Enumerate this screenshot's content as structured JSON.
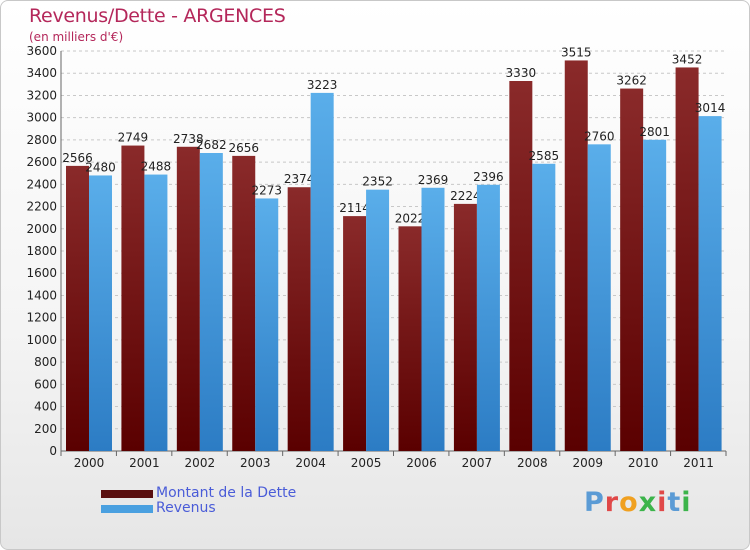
{
  "header": {
    "title": "Revenus/Dette - ARGENCES",
    "subtitle": "(en milliers d'€)"
  },
  "chart_data": {
    "type": "bar",
    "categories": [
      "2000",
      "2001",
      "2002",
      "2003",
      "2004",
      "2005",
      "2006",
      "2007",
      "2008",
      "2009",
      "2010",
      "2011"
    ],
    "series": [
      {
        "name": "Montant de la Dette",
        "values": [
          2566,
          2749,
          2738,
          2656,
          2374,
          2114,
          2022,
          2224,
          3330,
          3515,
          3262,
          3452
        ],
        "color": "#7a1a1a"
      },
      {
        "name": "Revenus",
        "values": [
          2480,
          2488,
          2682,
          2273,
          3223,
          2352,
          2369,
          2396,
          2585,
          2760,
          2801,
          3014
        ],
        "color": "#4aa0e0"
      }
    ],
    "yticks": [
      0,
      200,
      400,
      600,
      800,
      1000,
      1200,
      1400,
      1600,
      1800,
      2000,
      2200,
      2400,
      2600,
      2800,
      3000,
      3200,
      3400,
      3600
    ],
    "ylim": [
      0,
      3600
    ],
    "grid": true,
    "legend_position": "bottom-left"
  },
  "brand": {
    "logo_text": "Proxiti",
    "logo_colors": [
      "#5b9bd5",
      "#e04848",
      "#f0a020",
      "#3cb44b",
      "#e04848",
      "#5b9bd5",
      "#3cb44b"
    ]
  }
}
